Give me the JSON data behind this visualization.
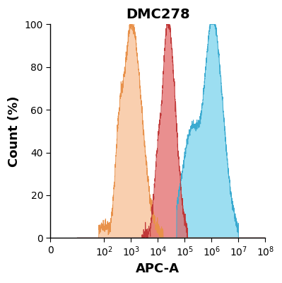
{
  "title": "DMC278",
  "xlabel": "APC-A",
  "ylabel": "Count (%)",
  "ylim": [
    0,
    100
  ],
  "title_fontsize": 14,
  "axis_label_fontsize": 13,
  "tick_fontsize": 10,
  "colors": {
    "orange_fill": "#F5B07A",
    "orange_line": "#E8914A",
    "red_fill": "#E06060",
    "red_line": "#C03838",
    "blue_fill": "#5BC8E8",
    "blue_line": "#3AAAD0"
  },
  "figsize": [
    3.99,
    4.0
  ],
  "dpi": 100
}
